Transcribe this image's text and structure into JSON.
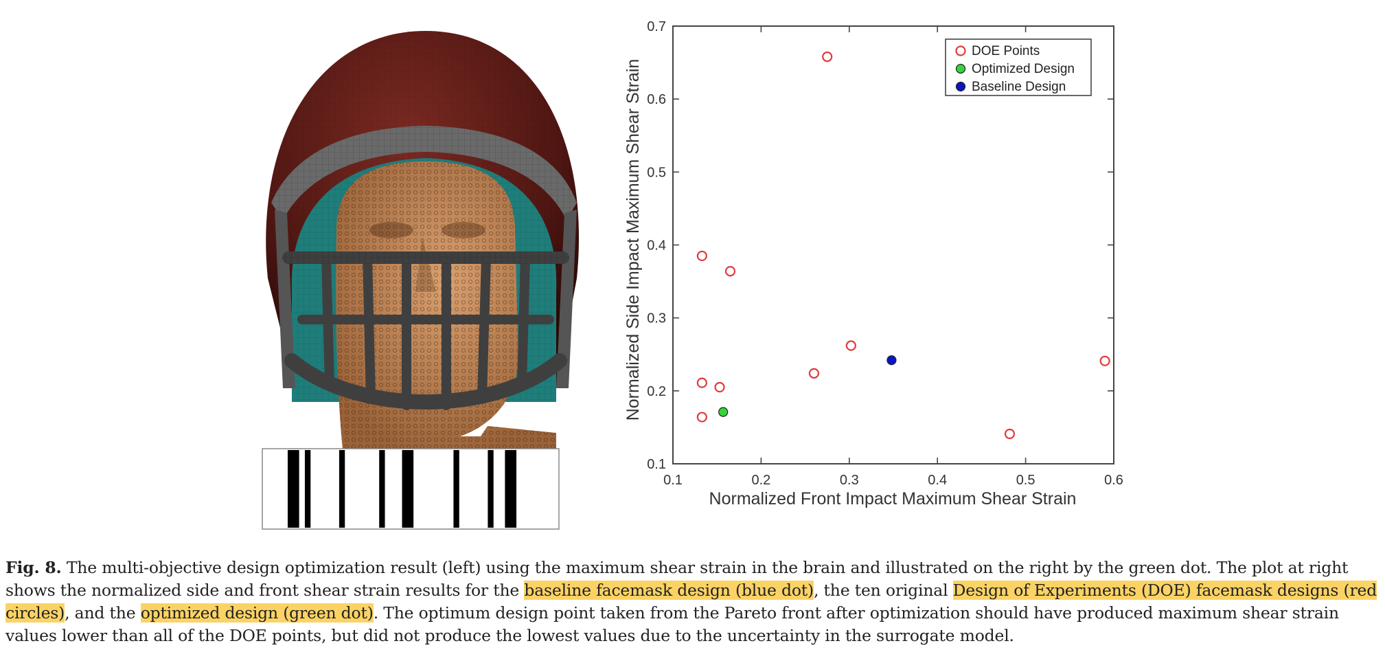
{
  "figure": {
    "label": "Fig. 8.",
    "caption_parts": [
      {
        "text": " The multi-objective design optimization result (left) using the maximum shear strain in the brain and illustrated on the right by the green dot. The plot at right shows the normalized side and front shear strain results for the ",
        "highlight": false
      },
      {
        "text": "baseline facemask design (blue dot)",
        "highlight": true
      },
      {
        "text": ", the ten original ",
        "highlight": false
      },
      {
        "text": "Design of Experiments (DOE) facemask designs (red circles)",
        "highlight": true
      },
      {
        "text": ", and the ",
        "highlight": false
      },
      {
        "text": "optimized design (green dot)",
        "highlight": true
      },
      {
        "text": ". The optimum design point taken from the Pareto front after optimization should have produced maximum shear strain values lower than all of the DOE points, but did not produce the lowest values due to the uncertainty in the surrogate model.",
        "highlight": false
      }
    ]
  },
  "left_image": {
    "barcode_pattern": [
      0.06,
      0.04,
      0.02,
      0.02,
      0.1,
      0.02,
      0.12,
      0.02,
      0.06,
      0.04,
      0.14,
      0.02,
      0.1,
      0.02,
      0.04,
      0.04,
      0.12
    ]
  },
  "colors": {
    "helmet_shell": "#5a1a16",
    "helmet_liner": "#1f7d7a",
    "face": "#c98c5c",
    "facemask": "#4a4a4a",
    "doe_points": "#e03a3a",
    "optimized": "#35d43a",
    "baseline": "#0a14c8",
    "highlight": "#fbd365"
  },
  "chart_data": {
    "type": "scatter",
    "xlabel": "Normalized Front Impact Maximum Shear Strain",
    "ylabel": "Normalized Side Impact Maximum Shear Strain",
    "xlim": [
      0.1,
      0.6
    ],
    "ylim": [
      0.1,
      0.7
    ],
    "xticks": [
      "0.1",
      "0.2",
      "0.3",
      "0.4",
      "0.5",
      "0.6"
    ],
    "yticks": [
      "0.1",
      "0.2",
      "0.3",
      "0.4",
      "0.5",
      "0.6",
      "0.7"
    ],
    "legend_position": "top-right",
    "grid": false,
    "series": [
      {
        "name": "DOE Points",
        "style": "open-circle",
        "points": [
          [
            0.275,
            0.658
          ],
          [
            0.133,
            0.385
          ],
          [
            0.165,
            0.364
          ],
          [
            0.302,
            0.262
          ],
          [
            0.26,
            0.224
          ],
          [
            0.133,
            0.211
          ],
          [
            0.153,
            0.205
          ],
          [
            0.133,
            0.164
          ],
          [
            0.59,
            0.241
          ],
          [
            0.482,
            0.141
          ]
        ]
      },
      {
        "name": "Optimized Design",
        "style": "filled-circle",
        "points": [
          [
            0.157,
            0.171
          ]
        ]
      },
      {
        "name": "Baseline Design",
        "style": "filled-circle",
        "points": [
          [
            0.348,
            0.242
          ]
        ]
      }
    ]
  }
}
